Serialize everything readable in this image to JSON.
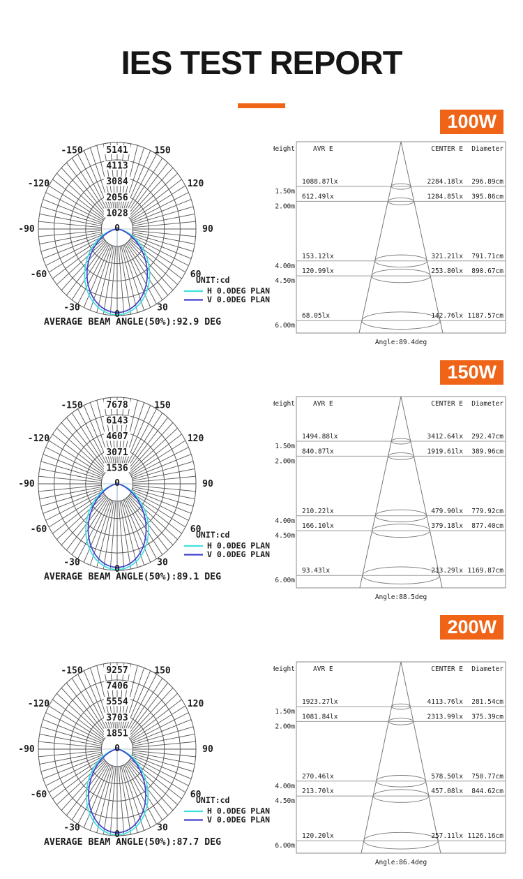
{
  "page": {
    "title": "IES TEST REPORT",
    "accent_color": "#EF6417"
  },
  "cone_headers": {
    "height": "Height",
    "avr": "AVR E",
    "center": "CENTER E",
    "diameter": "Diameter"
  },
  "chart_data": [
    {
      "wattage": "100W",
      "polar": {
        "type": "line-polar",
        "unit_label": "UNIT:cd",
        "ring_values": [
          "1028",
          "2056",
          "3084",
          "4113",
          "5141"
        ],
        "center_label": "0",
        "angle_labels": [
          "-150",
          "-120",
          "-90",
          "-60",
          "-30",
          "0",
          "30",
          "60",
          "90",
          "120",
          "150"
        ],
        "series": [
          {
            "name": "H 0.0DEG PLAN",
            "color": "#3FE0E0",
            "peak_cd": 5141
          },
          {
            "name": "V 0.0DEG PLAN",
            "color": "#4040CC",
            "peak_cd": 5141
          }
        ],
        "average_beam_angle_deg": 92.9,
        "caption": "AVERAGE BEAM ANGLE(50%):92.9 DEG"
      },
      "cone": {
        "type": "table",
        "columns": [
          "Height",
          "AVR E",
          "CENTER E",
          "Diameter"
        ],
        "heights_m": [
          1.5,
          2,
          4,
          4.5,
          6
        ],
        "rows": [
          [
            "1.50m",
            "1088.87lx",
            "2284.18lx",
            "296.89cm"
          ],
          [
            "2.00m",
            "612.49lx",
            "1284.85lx",
            "395.86cm"
          ],
          [
            "4.00m",
            "153.12lx",
            "321.21lx",
            "791.71cm"
          ],
          [
            "4.50m",
            "120.99lx",
            "253.80lx",
            "890.67cm"
          ],
          [
            "6.00m",
            "68.05lx",
            "142.76lx",
            "1187.57cm"
          ]
        ],
        "angle_deg": 89.4,
        "caption": "Angle:89.4deg"
      }
    },
    {
      "wattage": "150W",
      "polar": {
        "type": "line-polar",
        "unit_label": "UNIT:cd",
        "ring_values": [
          "1536",
          "3071",
          "4607",
          "6143",
          "7678"
        ],
        "center_label": "0",
        "angle_labels": [
          "-150",
          "-120",
          "-90",
          "-60",
          "-30",
          "0",
          "30",
          "60",
          "90",
          "120",
          "150"
        ],
        "series": [
          {
            "name": "H 0.0DEG PLAN",
            "color": "#3FE0E0",
            "peak_cd": 7678
          },
          {
            "name": "V 0.0DEG PLAN",
            "color": "#4040CC",
            "peak_cd": 7678
          }
        ],
        "average_beam_angle_deg": 89.1,
        "caption": "AVERAGE BEAM ANGLE(50%):89.1 DEG"
      },
      "cone": {
        "type": "table",
        "columns": [
          "Height",
          "AVR E",
          "CENTER E",
          "Diameter"
        ],
        "heights_m": [
          1.5,
          2,
          4,
          4.5,
          6
        ],
        "rows": [
          [
            "1.50m",
            "1494.88lx",
            "3412.64lx",
            "292.47cm"
          ],
          [
            "2.00m",
            "840.87lx",
            "1919.61lx",
            "389.96cm"
          ],
          [
            "4.00m",
            "210.22lx",
            "479.90lx",
            "779.92cm"
          ],
          [
            "4.50m",
            "166.10lx",
            "379.18lx",
            "877.40cm"
          ],
          [
            "6.00m",
            "93.43lx",
            "213.29lx",
            "1169.87cm"
          ]
        ],
        "angle_deg": 88.5,
        "caption": "Angle:88.5deg"
      }
    },
    {
      "wattage": "200W",
      "polar": {
        "type": "line-polar",
        "unit_label": "UNIT:cd",
        "ring_values": [
          "1851",
          "3703",
          "5554",
          "7406",
          "9257"
        ],
        "center_label": "0",
        "angle_labels": [
          "-150",
          "-120",
          "-90",
          "-60",
          "-30",
          "0",
          "30",
          "60",
          "90",
          "120",
          "150"
        ],
        "series": [
          {
            "name": "H 0.0DEG PLAN",
            "color": "#3FE0E0",
            "peak_cd": 9257
          },
          {
            "name": "V 0.0DEG PLAN",
            "color": "#4040CC",
            "peak_cd": 9257
          }
        ],
        "average_beam_angle_deg": 87.7,
        "caption": "AVERAGE BEAM ANGLE(50%):87.7 DEG"
      },
      "cone": {
        "type": "table",
        "columns": [
          "Height",
          "AVR E",
          "CENTER E",
          "Diameter"
        ],
        "heights_m": [
          1.5,
          2,
          4,
          4.5,
          6
        ],
        "rows": [
          [
            "1.50m",
            "1923.27lx",
            "4113.76lx",
            "281.54cm"
          ],
          [
            "2.00m",
            "1081.84lx",
            "2313.99lx",
            "375.39cm"
          ],
          [
            "4.00m",
            "270.46lx",
            "578.50lx",
            "750.77cm"
          ],
          [
            "4.50m",
            "213.70lx",
            "457.08lx",
            "844.62cm"
          ],
          [
            "6.00m",
            "120.20lx",
            "257.11lx",
            "1126.16cm"
          ]
        ],
        "angle_deg": 86.4,
        "caption": "Angle:86.4deg"
      }
    }
  ]
}
